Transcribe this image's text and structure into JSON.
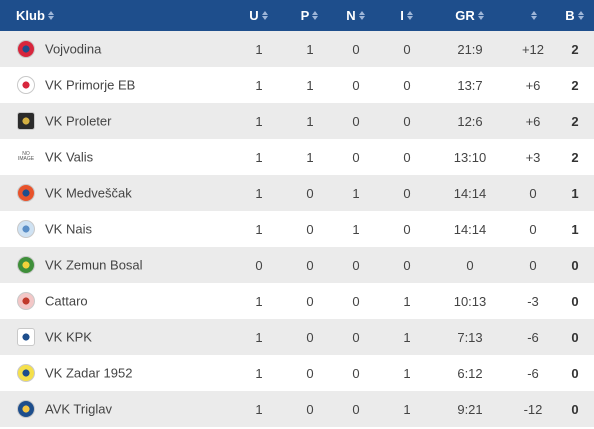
{
  "headers": {
    "club": "Klub",
    "u": "U",
    "p": "P",
    "n": "N",
    "i": "I",
    "gr": "GR",
    "diff": "",
    "b": "B"
  },
  "no_image_text": [
    "NO",
    "IMAGE"
  ],
  "rows": [
    {
      "club": "Vojvodina",
      "u": "1",
      "p": "1",
      "n": "0",
      "i": "0",
      "gr": "21:9",
      "diff": "+12",
      "b": "2",
      "logo_color": "#d7263d",
      "logo_accent": "#1e4e8c"
    },
    {
      "club": "VK Primorje EB",
      "u": "1",
      "p": "1",
      "n": "0",
      "i": "0",
      "gr": "13:7",
      "diff": "+6",
      "b": "2",
      "logo_color": "#ffffff",
      "logo_accent": "#d7263d"
    },
    {
      "club": "VK Proleter",
      "u": "1",
      "p": "1",
      "n": "0",
      "i": "0",
      "gr": "12:6",
      "diff": "+6",
      "b": "2",
      "logo_color": "#2b2b2b",
      "logo_accent": "#d4b042"
    },
    {
      "club": "VK Valis",
      "u": "1",
      "p": "1",
      "n": "0",
      "i": "0",
      "gr": "13:10",
      "diff": "+3",
      "b": "2",
      "logo_color": "none",
      "logo_accent": "none"
    },
    {
      "club": "VK Medveščak",
      "u": "1",
      "p": "0",
      "n": "1",
      "i": "0",
      "gr": "14:14",
      "diff": "0",
      "b": "1",
      "logo_color": "#e8532b",
      "logo_accent": "#1e4e8c"
    },
    {
      "club": "VK Nais",
      "u": "1",
      "p": "0",
      "n": "1",
      "i": "0",
      "gr": "14:14",
      "diff": "0",
      "b": "1",
      "logo_color": "#cfe2f3",
      "logo_accent": "#5b8fc7"
    },
    {
      "club": "VK Zemun Bosal",
      "u": "0",
      "p": "0",
      "n": "0",
      "i": "0",
      "gr": "0",
      "diff": "0",
      "b": "0",
      "logo_color": "#3f8f3a",
      "logo_accent": "#f2d13b"
    },
    {
      "club": "Cattaro",
      "u": "1",
      "p": "0",
      "n": "0",
      "i": "1",
      "gr": "10:13",
      "diff": "-3",
      "b": "0",
      "logo_color": "#f3c7c7",
      "logo_accent": "#c0392b"
    },
    {
      "club": "VK KPK",
      "u": "1",
      "p": "0",
      "n": "0",
      "i": "1",
      "gr": "7:13",
      "diff": "-6",
      "b": "0",
      "logo_color": "#ffffff",
      "logo_accent": "#1e4e8c"
    },
    {
      "club": "VK Zadar 1952",
      "u": "1",
      "p": "0",
      "n": "0",
      "i": "1",
      "gr": "6:12",
      "diff": "-6",
      "b": "0",
      "logo_color": "#f5e04a",
      "logo_accent": "#1e4e8c"
    },
    {
      "club": "AVK Triglav",
      "u": "1",
      "p": "0",
      "n": "0",
      "i": "1",
      "gr": "9:21",
      "diff": "-12",
      "b": "0",
      "logo_color": "#1e4e8c",
      "logo_accent": "#f5c542"
    }
  ],
  "colors": {
    "header_bg": "#1e4e8c",
    "row_odd": "#ebebeb",
    "row_even": "#ffffff"
  }
}
